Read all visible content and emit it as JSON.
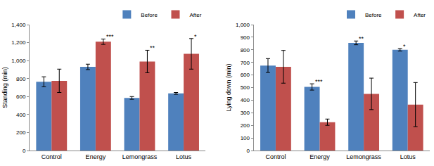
{
  "chart_data": [
    {
      "type": "bar",
      "y_label": "Standing (min)",
      "categories": [
        "Control",
        "Energy",
        "Lemongrass",
        "Lotus"
      ],
      "series": [
        {
          "name": "Before",
          "color": "#4f81bd",
          "values": [
            765,
            930,
            585,
            635
          ],
          "errors": [
            55,
            30,
            15,
            10
          ]
        },
        {
          "name": "After",
          "color": "#c0504d",
          "values": [
            775,
            1210,
            990,
            1075
          ],
          "errors": [
            130,
            30,
            125,
            170
          ]
        }
      ],
      "ylim": [
        0,
        1400
      ],
      "yticks": [
        0,
        200,
        400,
        600,
        800,
        {
          "value": 1000,
          "label": "1,000"
        },
        {
          "value": 1200,
          "label": "1,200"
        },
        {
          "value": 1400,
          "label": "1,400"
        }
      ],
      "grid": false,
      "legend": "top right",
      "annotations": [
        {
          "category": "Energy",
          "series": "After",
          "text": "***"
        },
        {
          "category": "Lemongrass",
          "series": "After",
          "text": "**"
        },
        {
          "category": "Lotus",
          "series": "After",
          "text": "*"
        }
      ]
    },
    {
      "type": "bar",
      "y_label": "Lying down (min)",
      "categories": [
        "Control",
        "Energy",
        "Lemongrass",
        "Lotus"
      ],
      "series": [
        {
          "name": "Before",
          "color": "#4f81bd",
          "values": [
            675,
            505,
            855,
            800
          ],
          "errors": [
            55,
            25,
            15,
            10
          ]
        },
        {
          "name": "After",
          "color": "#c0504d",
          "values": [
            665,
            225,
            450,
            365
          ],
          "errors": [
            130,
            25,
            125,
            175
          ]
        }
      ],
      "ylim": [
        0,
        1000
      ],
      "yticks": [
        0,
        100,
        200,
        300,
        400,
        500,
        600,
        700,
        800,
        900,
        {
          "value": 1000,
          "label": "1,000"
        }
      ],
      "grid": false,
      "legend": "top right",
      "annotations": [
        {
          "category": "Energy",
          "series": "Before",
          "text": "***"
        },
        {
          "category": "Lemongrass",
          "series": "Before",
          "text": "**"
        },
        {
          "category": "Lotus",
          "series": "Before",
          "text": "*"
        }
      ]
    }
  ]
}
